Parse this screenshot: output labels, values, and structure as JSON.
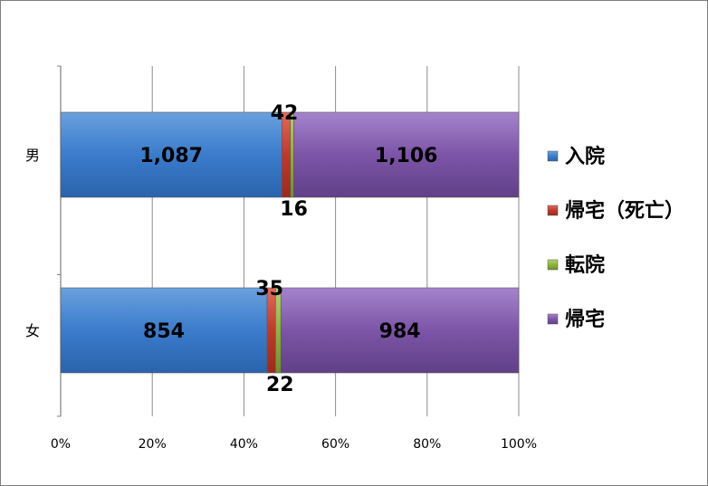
{
  "chart_data": {
    "type": "bar",
    "orientation": "horizontal",
    "stacked": "percent",
    "categories": [
      "男",
      "女"
    ],
    "series": [
      {
        "name": "入院",
        "values": [
          1087,
          854
        ],
        "color": "#3b7ccc"
      },
      {
        "name": "帰宅（死亡）",
        "values": [
          42,
          35
        ],
        "color": "#c0392b"
      },
      {
        "name": "転院",
        "values": [
          16,
          22
        ],
        "color": "#8db43c"
      },
      {
        "name": "帰宅",
        "values": [
          1106,
          984
        ],
        "color": "#7d55a8"
      }
    ],
    "data_labels": [
      [
        "1,087",
        "42",
        "16",
        "1,106"
      ],
      [
        "854",
        "35",
        "22",
        "984"
      ]
    ],
    "x_ticks": [
      "0%",
      "20%",
      "40%",
      "60%",
      "80%",
      "100%"
    ],
    "xlim": [
      0,
      100
    ],
    "grid": true,
    "legend_position": "right"
  }
}
